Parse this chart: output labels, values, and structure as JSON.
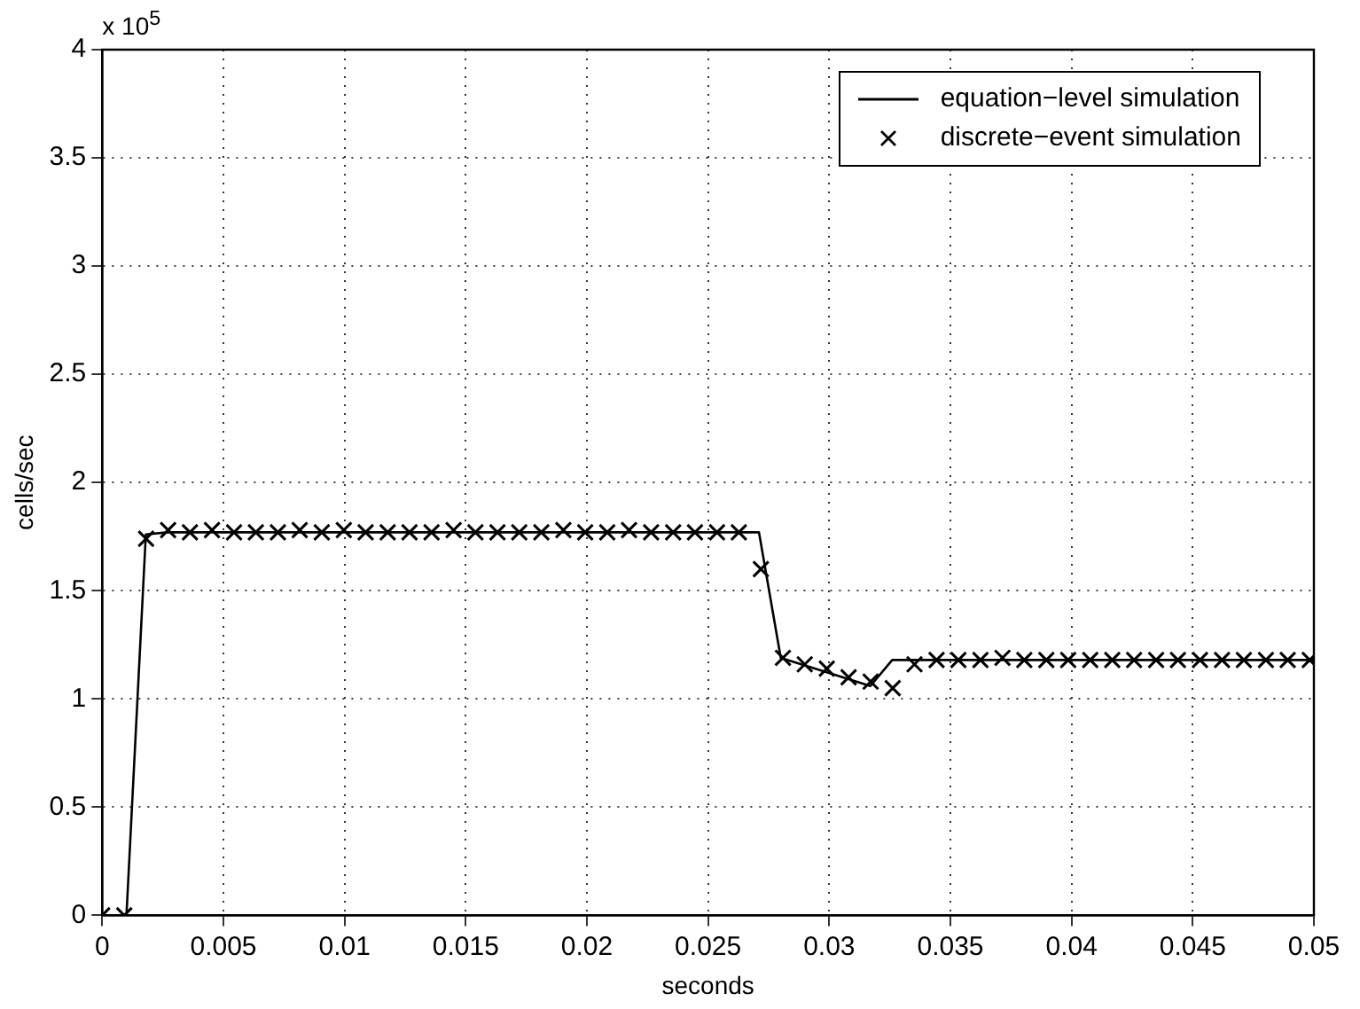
{
  "chart_data": {
    "type": "line",
    "xlabel": "seconds",
    "ylabel": "cells/sec",
    "annotations": [
      "x 10$^{5}$"
    ],
    "xlim": [
      0,
      0.05
    ],
    "xticks": [
      0,
      0.005,
      0.01,
      0.015,
      0.02,
      0.025,
      0.03,
      0.035,
      0.04,
      0.045,
      0.05
    ],
    "ylim": [
      0,
      4
    ],
    "yticks": [
      0,
      0.5,
      1,
      1.5,
      2,
      2.5,
      3,
      3.5,
      4
    ],
    "grid": true,
    "legend": "top right",
    "series": [
      {
        "name": "equation−level simulation",
        "color": "#000000",
        "marker": "none",
        "line_style": "solid",
        "x": [
          0,
          0.001,
          0.0018,
          0.0027,
          0.0271,
          0.028,
          0.0317,
          0.0326,
          0.05
        ],
        "values": [
          0,
          0,
          1.76,
          1.77,
          1.77,
          1.19,
          1.06,
          1.18,
          1.18
        ]
      },
      {
        "name": "discrete−event simulation",
        "type": "scatter",
        "color": "#000000",
        "marker": "cross",
        "x": [
          0,
          0.00091,
          0.00181,
          0.00272,
          0.00362,
          0.00453,
          0.00544,
          0.00634,
          0.00725,
          0.00815,
          0.00906,
          0.00997,
          0.01087,
          0.01178,
          0.01268,
          0.01359,
          0.0145,
          0.0154,
          0.01631,
          0.01721,
          0.01812,
          0.01903,
          0.01993,
          0.02084,
          0.02174,
          0.02265,
          0.02356,
          0.02446,
          0.02537,
          0.02627,
          0.02718,
          0.02809,
          0.02899,
          0.0299,
          0.0308,
          0.03171,
          0.03262,
          0.03352,
          0.03443,
          0.03533,
          0.03624,
          0.03715,
          0.03805,
          0.03896,
          0.03986,
          0.04077,
          0.04168,
          0.04258,
          0.04349,
          0.04439,
          0.0453,
          0.04621,
          0.04711,
          0.04802,
          0.04892,
          0.04983
        ],
        "values": [
          0,
          0,
          1.74,
          1.78,
          1.77,
          1.78,
          1.77,
          1.77,
          1.77,
          1.78,
          1.77,
          1.78,
          1.77,
          1.77,
          1.77,
          1.77,
          1.78,
          1.77,
          1.77,
          1.77,
          1.77,
          1.78,
          1.77,
          1.77,
          1.78,
          1.77,
          1.77,
          1.77,
          1.77,
          1.77,
          1.6,
          1.19,
          1.16,
          1.14,
          1.1,
          1.08,
          1.05,
          1.16,
          1.18,
          1.18,
          1.18,
          1.19,
          1.18,
          1.18,
          1.18,
          1.18,
          1.18,
          1.18,
          1.18,
          1.18,
          1.18,
          1.18,
          1.18,
          1.18,
          1.18,
          1.18
        ]
      }
    ]
  }
}
